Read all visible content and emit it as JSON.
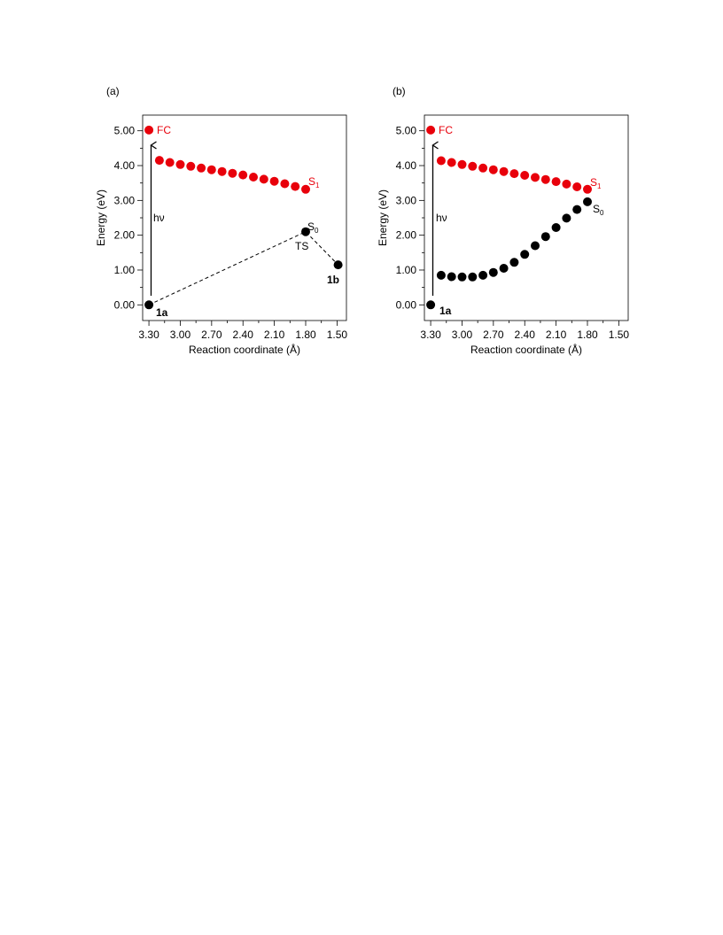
{
  "chart_data": [
    {
      "type": "scatter",
      "panel_label": "(a)",
      "xlabel": "Reaction coordinate (Å)",
      "ylabel": "Energy (eV)",
      "xlim": [
        3.36,
        1.41
      ],
      "ylim": [
        -0.45,
        5.45
      ],
      "x_ticks": [
        "3.30",
        "3.00",
        "2.70",
        "2.40",
        "2.10",
        "1.80",
        "1.50"
      ],
      "y_ticks": [
        "0.00",
        "1.00",
        "2.00",
        "3.00",
        "4.00",
        "5.00"
      ],
      "x_tick_values": [
        3.3,
        3.0,
        2.7,
        2.4,
        2.1,
        1.8,
        1.5
      ],
      "y_tick_values": [
        0,
        1,
        2,
        3,
        4,
        5
      ],
      "series": [
        {
          "name": "S1",
          "color": "#e8000b",
          "points": [
            {
              "x": 3.3,
              "y": 5.02
            },
            {
              "x": 3.2,
              "y": 4.15
            },
            {
              "x": 3.1,
              "y": 4.09
            },
            {
              "x": 3.0,
              "y": 4.03
            },
            {
              "x": 2.9,
              "y": 3.98
            },
            {
              "x": 2.8,
              "y": 3.93
            },
            {
              "x": 2.7,
              "y": 3.88
            },
            {
              "x": 2.6,
              "y": 3.83
            },
            {
              "x": 2.5,
              "y": 3.78
            },
            {
              "x": 2.4,
              "y": 3.73
            },
            {
              "x": 2.3,
              "y": 3.67
            },
            {
              "x": 2.2,
              "y": 3.61
            },
            {
              "x": 2.1,
              "y": 3.55
            },
            {
              "x": 2.0,
              "y": 3.48
            },
            {
              "x": 1.9,
              "y": 3.4
            },
            {
              "x": 1.8,
              "y": 3.32
            }
          ]
        },
        {
          "name": "S0",
          "color": "#000000",
          "points": [
            {
              "x": 3.3,
              "y": 0.0
            },
            {
              "x": 1.8,
              "y": 2.1
            },
            {
              "x": 1.49,
              "y": 1.15
            }
          ],
          "dashed_path": true
        }
      ],
      "arrow": {
        "from": [
          3.3,
          0.1
        ],
        "to": [
          3.3,
          4.9
        ],
        "label": "hν"
      },
      "labels": {
        "fc": "FC",
        "s1_main": "S",
        "s1_sub": "1",
        "s0_main": "S",
        "s0_sub": "0",
        "ts": "TS",
        "start": "1a",
        "end": "1b"
      },
      "label_colors": {
        "s1": "#e8000b",
        "fc": "#e8000b",
        "s0": "#000000"
      }
    },
    {
      "type": "scatter",
      "panel_label": "(b)",
      "xlabel": "Reaction coordinate (Å)",
      "ylabel": "Energy (eV)",
      "xlim": [
        3.36,
        1.41
      ],
      "ylim": [
        -0.45,
        5.45
      ],
      "x_ticks": [
        "3.30",
        "3.00",
        "2.70",
        "2.40",
        "2.10",
        "1.80",
        "1.50"
      ],
      "y_ticks": [
        "0.00",
        "1.00",
        "2.00",
        "3.00",
        "4.00",
        "5.00"
      ],
      "x_tick_values": [
        3.3,
        3.0,
        2.7,
        2.4,
        2.1,
        1.8,
        1.5
      ],
      "y_tick_values": [
        0,
        1,
        2,
        3,
        4,
        5
      ],
      "series": [
        {
          "name": "S1",
          "color": "#e8000b",
          "points": [
            {
              "x": 3.3,
              "y": 5.02
            },
            {
              "x": 3.2,
              "y": 4.14
            },
            {
              "x": 3.1,
              "y": 4.09
            },
            {
              "x": 3.0,
              "y": 4.03
            },
            {
              "x": 2.9,
              "y": 3.98
            },
            {
              "x": 2.8,
              "y": 3.93
            },
            {
              "x": 2.7,
              "y": 3.88
            },
            {
              "x": 2.6,
              "y": 3.83
            },
            {
              "x": 2.5,
              "y": 3.77
            },
            {
              "x": 2.4,
              "y": 3.72
            },
            {
              "x": 2.3,
              "y": 3.66
            },
            {
              "x": 2.2,
              "y": 3.6
            },
            {
              "x": 2.1,
              "y": 3.54
            },
            {
              "x": 2.0,
              "y": 3.47
            },
            {
              "x": 1.9,
              "y": 3.39
            },
            {
              "x": 1.8,
              "y": 3.32
            }
          ]
        },
        {
          "name": "S0",
          "color": "#000000",
          "points": [
            {
              "x": 3.3,
              "y": 0.0
            },
            {
              "x": 3.2,
              "y": 0.85
            },
            {
              "x": 3.1,
              "y": 0.81
            },
            {
              "x": 3.0,
              "y": 0.8
            },
            {
              "x": 2.9,
              "y": 0.8
            },
            {
              "x": 2.8,
              "y": 0.85
            },
            {
              "x": 2.7,
              "y": 0.93
            },
            {
              "x": 2.6,
              "y": 1.05
            },
            {
              "x": 2.5,
              "y": 1.22
            },
            {
              "x": 2.4,
              "y": 1.45
            },
            {
              "x": 2.3,
              "y": 1.7
            },
            {
              "x": 2.2,
              "y": 1.96
            },
            {
              "x": 2.1,
              "y": 2.22
            },
            {
              "x": 2.0,
              "y": 2.49
            },
            {
              "x": 1.9,
              "y": 2.74
            },
            {
              "x": 1.8,
              "y": 2.96
            }
          ],
          "dashed_path": false
        }
      ],
      "arrow": {
        "from": [
          3.3,
          0.1
        ],
        "to": [
          3.3,
          4.9
        ],
        "label": "hν"
      },
      "labels": {
        "fc": "FC",
        "s1_main": "S",
        "s1_sub": "1",
        "s0_main": "S",
        "s0_sub": "0",
        "ts": "",
        "start": "1a",
        "end": ""
      },
      "label_colors": {
        "s1": "#e8000b",
        "fc": "#e8000b",
        "s0": "#000000"
      }
    }
  ]
}
